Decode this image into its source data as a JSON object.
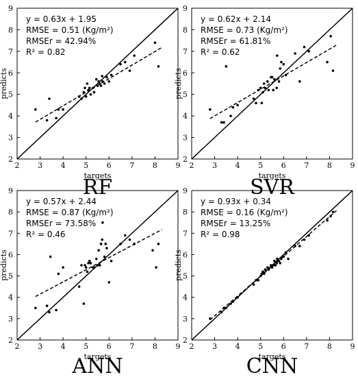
{
  "chart_data": [
    {
      "type": "scatter",
      "title": "RF",
      "xlabel": "targets",
      "ylabel": "predicts",
      "xlim": [
        2,
        9
      ],
      "ylim": [
        2,
        9
      ],
      "xticks": [
        2,
        3,
        4,
        5,
        6,
        7,
        8,
        9
      ],
      "yticks": [
        2,
        3,
        4,
        5,
        6,
        7,
        8,
        9
      ],
      "identity_line": true,
      "fit": {
        "slope": 0.63,
        "intercept": 1.95,
        "x_range": [
          2.8,
          8.3
        ]
      },
      "annotations": [
        "y = 0.63x + 1.95",
        "RMSE = 0.51 (Kg/m²)",
        "RMSEr = 42.94%",
        "R² = 0.82"
      ],
      "points": {
        "x": [
          2.8,
          3.3,
          3.4,
          3.7,
          3.8,
          4.0,
          4.7,
          4.8,
          4.9,
          4.95,
          5.0,
          5.05,
          5.1,
          5.15,
          5.2,
          5.3,
          5.35,
          5.45,
          5.5,
          5.55,
          5.6,
          5.65,
          5.7,
          5.72,
          5.8,
          5.9,
          6.0,
          6.1,
          6.5,
          6.7,
          6.9,
          7.1,
          8.0,
          8.15
        ],
        "y": [
          4.3,
          3.8,
          4.8,
          3.9,
          4.3,
          4.3,
          4.9,
          4.8,
          5.1,
          5.3,
          4.9,
          5.5,
          5.2,
          5.3,
          5.0,
          5.3,
          5.1,
          5.7,
          5.4,
          5.6,
          5.5,
          5.4,
          5.85,
          5.6,
          5.5,
          5.8,
          5.6,
          5.9,
          6.4,
          6.5,
          6.1,
          6.8,
          7.4,
          6.3
        ]
      }
    },
    {
      "type": "scatter",
      "title": "SVR",
      "xlabel": "targets",
      "ylabel": "predicts",
      "xlim": [
        2,
        9
      ],
      "ylim": [
        2,
        9
      ],
      "xticks": [
        2,
        3,
        4,
        5,
        6,
        7,
        8,
        9
      ],
      "yticks": [
        2,
        3,
        4,
        5,
        6,
        7,
        8,
        9
      ],
      "identity_line": true,
      "fit": {
        "slope": 0.62,
        "intercept": 2.14,
        "x_range": [
          2.8,
          8.3
        ]
      },
      "annotations": [
        "y = 0.62x + 2.14",
        "RMSE = 0.73 (Kg/m²)",
        "RMSEr = 61.81%",
        "R² = 0.62"
      ],
      "points": {
        "x": [
          2.8,
          3.3,
          3.4,
          3.5,
          3.7,
          3.8,
          4.0,
          4.7,
          4.8,
          4.9,
          5.0,
          5.05,
          5.1,
          5.15,
          5.2,
          5.3,
          5.35,
          5.45,
          5.5,
          5.55,
          5.6,
          5.7,
          5.72,
          5.8,
          5.85,
          5.9,
          6.0,
          6.1,
          6.5,
          6.7,
          6.9,
          7.1,
          7.9,
          8.05,
          8.15
        ],
        "y": [
          4.3,
          3.7,
          3.7,
          6.3,
          4.0,
          4.4,
          4.5,
          4.8,
          4.6,
          5.2,
          5.3,
          4.6,
          5.1,
          5.5,
          5.3,
          5.6,
          5.2,
          5.8,
          5.8,
          5.2,
          5.7,
          5.3,
          6.8,
          5.6,
          6.2,
          6.5,
          6.4,
          5.9,
          6.9,
          5.6,
          7.2,
          7.0,
          6.5,
          7.7,
          6.1
        ]
      }
    },
    {
      "type": "scatter",
      "title": "ANN",
      "xlabel": "targets",
      "ylabel": "predicts",
      "xlim": [
        2,
        9
      ],
      "ylim": [
        2,
        9
      ],
      "xticks": [
        2,
        3,
        4,
        5,
        6,
        7,
        8,
        9
      ],
      "yticks": [
        2,
        3,
        4,
        5,
        6,
        7,
        8,
        9
      ],
      "identity_line": true,
      "fit": {
        "slope": 0.57,
        "intercept": 2.44,
        "x_range": [
          2.8,
          8.3
        ]
      },
      "annotations": [
        "y = 0.57x + 2.44",
        "RMSE = 0.87 (Kg/m²)",
        "RMSEr = 73.58%",
        "R² = 0.46"
      ],
      "points": {
        "x": [
          2.8,
          3.3,
          3.4,
          3.45,
          3.7,
          3.8,
          4.0,
          4.7,
          4.8,
          4.9,
          4.95,
          5.0,
          5.05,
          5.1,
          5.15,
          5.2,
          5.3,
          5.35,
          5.45,
          5.5,
          5.55,
          5.6,
          5.65,
          5.7,
          5.72,
          5.8,
          5.85,
          5.9,
          6.0,
          6.1,
          6.5,
          6.7,
          6.9,
          7.1,
          7.9,
          8.05,
          8.15
        ],
        "y": [
          3.5,
          3.6,
          3.3,
          5.9,
          3.4,
          5.1,
          5.4,
          4.5,
          5.5,
          3.7,
          5.5,
          5.4,
          5.2,
          5.6,
          5.7,
          5.6,
          5.4,
          5.4,
          5.8,
          5.5,
          6.2,
          5.5,
          6.5,
          6.7,
          7.5,
          5.9,
          6.5,
          6.3,
          4.7,
          5.7,
          6.5,
          6.9,
          6.7,
          6.5,
          6.2,
          5.4,
          6.5
        ]
      }
    },
    {
      "type": "scatter",
      "title": "CNN",
      "xlabel": "targets",
      "ylabel": "predicts",
      "xlim": [
        2,
        9
      ],
      "ylim": [
        2,
        9
      ],
      "xticks": [
        2,
        3,
        4,
        5,
        6,
        7,
        8,
        9
      ],
      "yticks": [
        2,
        3,
        4,
        5,
        6,
        7,
        8,
        9
      ],
      "identity_line": true,
      "fit": {
        "slope": 0.93,
        "intercept": 0.34,
        "x_range": [
          2.8,
          8.3
        ]
      },
      "annotations": [
        "y = 0.93x + 0.34",
        "RMSE = 0.16 (Kg/m²)",
        "RMSEr = 13.25%",
        "R² = 0.98"
      ],
      "points": {
        "x": [
          2.8,
          3.3,
          3.4,
          3.5,
          3.7,
          3.8,
          4.0,
          4.7,
          4.8,
          4.9,
          5.0,
          5.05,
          5.1,
          5.15,
          5.2,
          5.3,
          5.35,
          5.45,
          5.5,
          5.55,
          5.6,
          5.65,
          5.7,
          5.72,
          5.8,
          5.85,
          5.9,
          6.0,
          6.1,
          6.2,
          6.5,
          6.7,
          6.9,
          7.1,
          7.9,
          8.05,
          8.15
        ],
        "y": [
          3.0,
          3.3,
          3.5,
          3.5,
          3.7,
          3.8,
          4.0,
          4.6,
          4.8,
          4.8,
          5.0,
          5.1,
          5.2,
          5.1,
          5.3,
          5.4,
          5.3,
          5.5,
          5.4,
          5.5,
          5.7,
          5.5,
          5.6,
          5.8,
          5.7,
          5.6,
          5.8,
          5.9,
          6.1,
          5.8,
          6.4,
          6.4,
          6.7,
          6.9,
          7.6,
          7.8,
          8.0
        ]
      }
    }
  ]
}
